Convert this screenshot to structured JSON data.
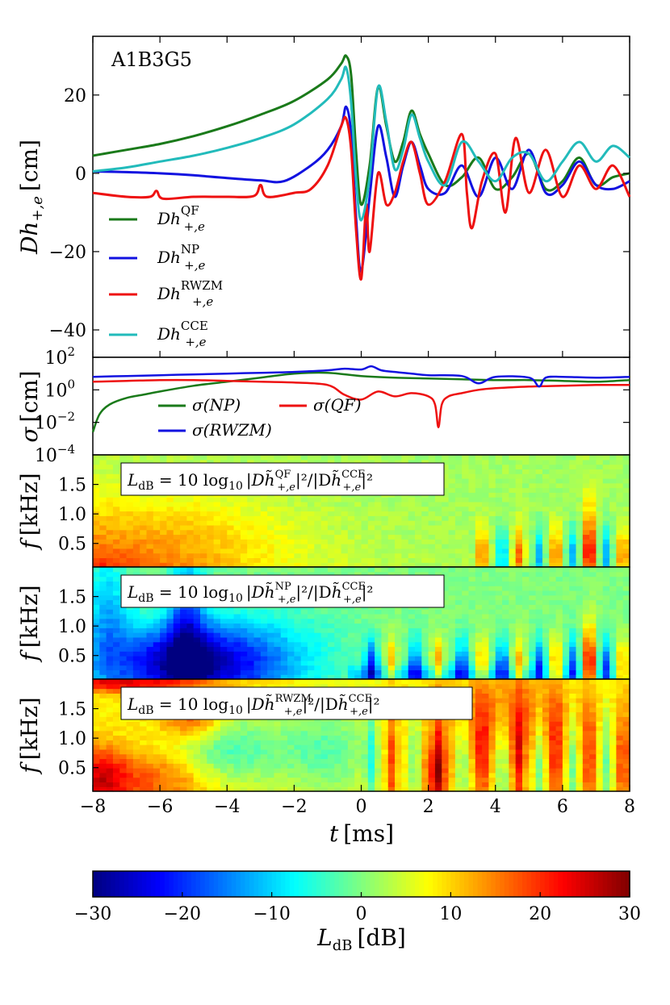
{
  "chart_data": [
    {
      "type": "line",
      "panel": "strain",
      "title": "A1B3G5",
      "xlabel": "",
      "ylabel": "Dh+,e [cm]",
      "xlim": [
        -8,
        8
      ],
      "ylim": [
        -47,
        35
      ],
      "yticks": [
        20,
        0,
        -20,
        -40
      ],
      "yticks_text": [
        "20",
        "0",
        "−20",
        "−40"
      ],
      "series": [
        {
          "name": "Dh+,e QF",
          "legend_text": "Dh",
          "sup": "QF",
          "sub": "+,e",
          "color": "#1a7a1a",
          "x": [
            -8,
            -7,
            -6,
            -5,
            -4,
            -3,
            -2,
            -1,
            -0.6,
            -0.45,
            -0.3,
            -0.15,
            0,
            0.25,
            0.5,
            0.75,
            1,
            1.25,
            1.5,
            1.75,
            2,
            2.5,
            3,
            3.5,
            4,
            4.5,
            5,
            5.5,
            6,
            6.5,
            7,
            7.5,
            8
          ],
          "y": [
            4.5,
            6,
            7.5,
            9.5,
            12,
            15,
            18.5,
            24,
            28,
            30,
            25,
            5,
            -8,
            2,
            22,
            12,
            3,
            8,
            16,
            10,
            5,
            -3,
            -1,
            4,
            -4,
            -1,
            5,
            -4,
            -2,
            4,
            -3,
            -1,
            0
          ]
        },
        {
          "name": "Dh+,e NP",
          "legend_text": "Dh",
          "sup": "NP",
          "sub": "+,e",
          "color": "#1212e0",
          "x": [
            -8,
            -7,
            -6,
            -5,
            -4,
            -3,
            -2.3,
            -1.5,
            -1,
            -0.6,
            -0.45,
            -0.3,
            -0.15,
            0,
            0.25,
            0.5,
            0.75,
            1,
            1.25,
            1.5,
            1.75,
            2,
            2.5,
            3,
            3.5,
            4,
            4.5,
            5,
            5.5,
            6,
            6.5,
            7,
            7.5,
            8
          ],
          "y": [
            0.5,
            0.3,
            0,
            -0.5,
            -1.2,
            -1.8,
            -2,
            2,
            6,
            12,
            17,
            10,
            -12,
            -25,
            -6,
            12,
            4,
            -6,
            2,
            8,
            2,
            -4,
            -5,
            2,
            -6,
            4,
            -4,
            6,
            -5,
            -3,
            3,
            -3,
            -4,
            -2
          ]
        },
        {
          "name": "Dh+,e RWZM",
          "legend_text": "Dh",
          "sup": "RWZM",
          "sub": "+,e",
          "color": "#ee1111",
          "x": [
            -8,
            -7,
            -6.3,
            -6.1,
            -5.9,
            -5,
            -4,
            -3.2,
            -3,
            -2.8,
            -2,
            -1.5,
            -1,
            -0.6,
            -0.45,
            -0.3,
            -0.15,
            0,
            0.15,
            0.25,
            0.5,
            0.75,
            1,
            1.25,
            1.5,
            1.75,
            2,
            2.5,
            3,
            3.15,
            3.3,
            3.6,
            4,
            4.3,
            4.6,
            5,
            5.5,
            6,
            6.5,
            7,
            7.5,
            8
          ],
          "y": [
            -5,
            -6,
            -6,
            -4.5,
            -6.5,
            -6,
            -6,
            -5.8,
            -3,
            -6,
            -5,
            -4,
            2,
            12,
            14,
            6,
            -15,
            -27,
            -8,
            -20,
            0,
            -8,
            -5,
            3,
            8,
            0,
            -8,
            -2,
            10,
            -5,
            -14,
            -2,
            5,
            -10,
            9,
            -5,
            6,
            -6,
            2,
            -4,
            2,
            -6
          ]
        },
        {
          "name": "Dh+,e CCE",
          "legend_text": "Dh",
          "sup": "CCE",
          "sub": "+,e",
          "color": "#22bbbb",
          "x": [
            -8,
            -7,
            -6,
            -5,
            -4,
            -3,
            -2,
            -1,
            -0.6,
            -0.45,
            -0.3,
            -0.15,
            0,
            0.25,
            0.5,
            0.75,
            1,
            1.25,
            1.5,
            1.75,
            2,
            2.5,
            3,
            3.5,
            4,
            4.5,
            5,
            5.5,
            6,
            6.5,
            7,
            7.5,
            8
          ],
          "y": [
            0.5,
            1.5,
            3,
            4.5,
            6.5,
            9,
            12.5,
            19,
            24,
            27,
            18,
            -2,
            -12,
            -1,
            22,
            13,
            1,
            6,
            15,
            9,
            3,
            -3,
            8,
            3,
            -2,
            4,
            5,
            -2,
            3,
            8,
            3,
            7,
            4
          ]
        }
      ]
    },
    {
      "type": "line",
      "panel": "sigma",
      "ylabel": "σ [cm]",
      "xlim": [
        -8,
        8
      ],
      "yscale": "log",
      "ylim_log10": [
        -4,
        2
      ],
      "yticks_log10": [
        2,
        0,
        -2,
        -4
      ],
      "yticks_text": [
        "10",
        "10",
        "10",
        "10"
      ],
      "yticks_exp": [
        "2",
        "0",
        "−2",
        "−4"
      ],
      "series": [
        {
          "name": "σ(NP)",
          "color": "#1a7a1a",
          "x": [
            -8,
            -7.8,
            -7.5,
            -7,
            -6.5,
            -6,
            -5,
            -4,
            -3,
            -2,
            -1,
            0,
            1,
            2,
            3,
            4,
            5,
            6,
            7,
            8
          ],
          "log10y": [
            -2.6,
            -1.5,
            -0.9,
            -0.5,
            -0.3,
            -0.1,
            0.25,
            0.5,
            0.75,
            1,
            1.05,
            0.85,
            0.75,
            0.7,
            0.65,
            0.6,
            0.6,
            0.55,
            0.5,
            0.6
          ]
        },
        {
          "name": "σ(QF)",
          "color": "#ee1111",
          "x": [
            -8,
            -7,
            -6,
            -5,
            -4,
            -3,
            -2,
            -1,
            -0.5,
            0,
            0.5,
            1,
            1.5,
            2,
            2.2,
            2.3,
            2.4,
            2.6,
            3,
            3.5,
            4,
            5,
            6,
            7,
            8
          ],
          "log10y": [
            0.5,
            0.55,
            0.6,
            0.6,
            0.55,
            0.5,
            0.45,
            0.3,
            -0.3,
            -0.6,
            -0.1,
            -0.4,
            -0.2,
            -0.4,
            -0.9,
            -2.3,
            -0.9,
            -0.4,
            -0.2,
            0,
            0.1,
            0.2,
            0.25,
            0.3,
            0.3
          ]
        },
        {
          "name": "σ(RWZM)",
          "color": "#1212e0",
          "x": [
            -8,
            -7,
            -6,
            -5,
            -4,
            -3,
            -2,
            -1,
            -0.5,
            0,
            0.3,
            0.6,
            1,
            1.5,
            2,
            3,
            3.5,
            4,
            5,
            5.3,
            5.5,
            6,
            7,
            8
          ],
          "log10y": [
            0.8,
            0.85,
            0.9,
            0.95,
            1,
            1.05,
            1.1,
            1.2,
            1.3,
            1.25,
            1.45,
            1.2,
            1.1,
            1,
            0.9,
            0.85,
            0.4,
            0.8,
            0.75,
            0.2,
            0.75,
            0.8,
            0.75,
            0.8
          ]
        }
      ],
      "legend": [
        {
          "label": "σ(NP)",
          "color": "#1a7a1a"
        },
        {
          "label": "σ(QF)",
          "color": "#ee1111"
        },
        {
          "label": "σ(RWZM)",
          "color": "#1212e0"
        }
      ]
    },
    {
      "type": "heatmap",
      "panel": "QF",
      "ylabel": "f [kHz]",
      "title": "L_dB = 10 log10 |Dh~QF+,e|^2 / |Dh~CCE+,e|^2",
      "eq_sup": "QF",
      "ylim": [
        0.1,
        2.0
      ],
      "yticks": [
        1.5,
        1.0,
        0.5
      ],
      "yticks_text": [
        "1.5",
        "1.0",
        "0.5"
      ],
      "zlim": [
        -30,
        30
      ]
    },
    {
      "type": "heatmap",
      "panel": "NP",
      "ylabel": "f [kHz]",
      "title": "L_dB = 10 log10 |Dh~NP+,e|^2 / |Dh~CCE+,e|^2",
      "eq_sup": "NP",
      "ylim": [
        0.1,
        2.0
      ],
      "yticks": [
        1.5,
        1.0,
        0.5
      ],
      "yticks_text": [
        "1.5",
        "1.0",
        "0.5"
      ],
      "zlim": [
        -30,
        30
      ]
    },
    {
      "type": "heatmap",
      "panel": "RWZM",
      "ylabel": "f [kHz]",
      "title": "L_dB = 10 log10 |Dh~RWZM+,e|^2 / |Dh~CCE+,e|^2",
      "eq_sup": "RWZM",
      "xlabel": "t [ms]",
      "xticks": [
        -8,
        -6,
        -4,
        -2,
        0,
        2,
        4,
        6,
        8
      ],
      "xticks_text": [
        "−8",
        "−6",
        "−4",
        "−2",
        "0",
        "2",
        "4",
        "6",
        "8"
      ],
      "ylim": [
        0.1,
        2.0
      ],
      "yticks": [
        1.5,
        1.0,
        0.5
      ],
      "yticks_text": [
        "1.5",
        "1.0",
        "0.5"
      ],
      "zlim": [
        -30,
        30
      ]
    },
    {
      "type": "colorbar",
      "label": "LdB [dB]",
      "range": [
        -30,
        30
      ],
      "ticks": [
        -30,
        -20,
        -10,
        0,
        10,
        20,
        30
      ],
      "ticks_text": [
        "−30",
        "−20",
        "−10",
        "0",
        "10",
        "20",
        "30"
      ]
    }
  ],
  "labels": {
    "panel_title": "A1B3G5",
    "ylabel_main_D": "Dh",
    "ylabel_main_sub": "+,e",
    "ylabel_main_unit": "[cm]",
    "ylabel_sigma": "σ",
    "ylabel_sigma_unit": "[cm]",
    "ylabel_f": "f",
    "ylabel_f_unit": "[kHz]",
    "xlabel_t": "t",
    "xlabel_t_unit": "[ms]",
    "eq_lhs": "L",
    "eq_lhs_sub": "dB",
    "eq_mid": " = 10 log",
    "eq_log_sub": "10",
    "eq_abs_open": "|D",
    "eq_h": "h̃",
    "eq_sub": "+,e",
    "eq_frac": "|²/|D",
    "eq_den_sup": "CCE",
    "eq_end": "|²",
    "cbar_L": "L",
    "cbar_sub": "dB",
    "cbar_unit": "[dB]"
  }
}
